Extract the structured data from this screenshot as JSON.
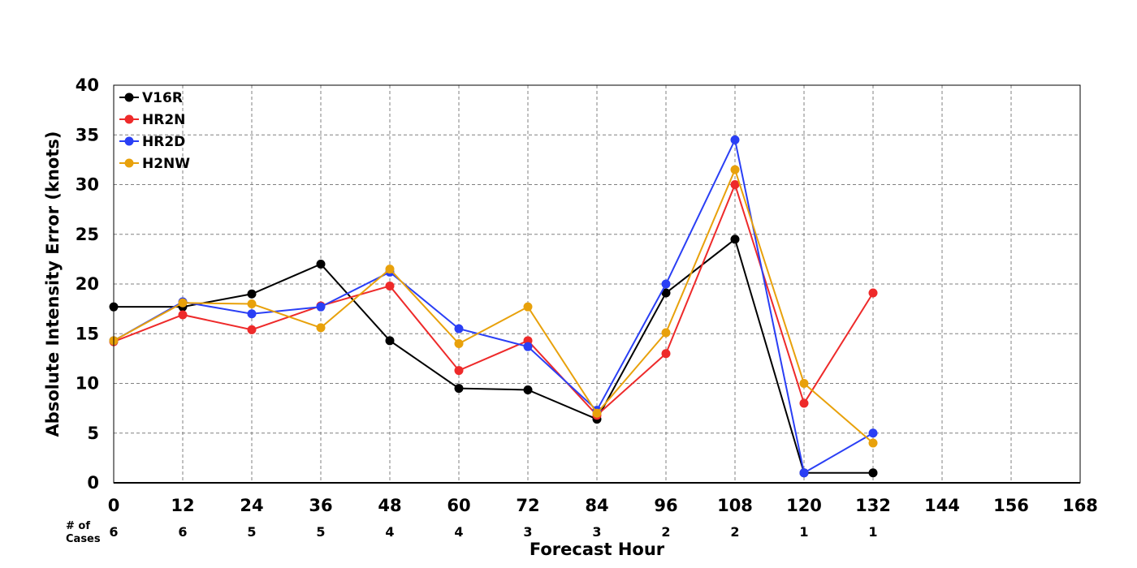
{
  "chart_data": {
    "type": "line",
    "xlabel": "Forecast Hour",
    "ylabel": "Absolute Intensity Error (knots)",
    "xlim": [
      0,
      168
    ],
    "ylim": [
      0,
      40
    ],
    "x_ticks": [
      0,
      12,
      24,
      36,
      48,
      60,
      72,
      84,
      96,
      108,
      120,
      132,
      144,
      156,
      168
    ],
    "y_ticks": [
      0,
      5,
      10,
      15,
      20,
      25,
      30,
      35,
      40
    ],
    "grid": true,
    "legend_position": "top-left",
    "cases_title": [
      "# of",
      "Cases"
    ],
    "cases_x": [
      0,
      12,
      24,
      36,
      48,
      60,
      72,
      84,
      96,
      108,
      120,
      132
    ],
    "cases": [
      "6",
      "6",
      "5",
      "5",
      "4",
      "4",
      "3",
      "3",
      "2",
      "2",
      "1",
      "1"
    ],
    "series": [
      {
        "name": "V16R",
        "color": "#000000",
        "x": [
          0,
          12,
          24,
          36,
          48,
          60,
          72,
          84,
          96,
          108,
          120,
          132
        ],
        "values": [
          17.7,
          17.7,
          19.0,
          22.0,
          14.3,
          9.5,
          9.35,
          6.4,
          19.1,
          24.5,
          1.0,
          1.0
        ]
      },
      {
        "name": "HR2N",
        "color": "#ee2a2a",
        "x": [
          0,
          12,
          24,
          36,
          48,
          60,
          72,
          84,
          96,
          108,
          120,
          132
        ],
        "values": [
          14.2,
          16.9,
          15.4,
          17.8,
          19.8,
          11.3,
          14.3,
          6.8,
          13.0,
          30.0,
          8.0,
          19.1
        ]
      },
      {
        "name": "HR2D",
        "color": "#2a3ff5",
        "x": [
          0,
          12,
          24,
          36,
          48,
          60,
          72,
          84,
          96,
          108,
          120,
          132
        ],
        "values": [
          14.3,
          18.2,
          17.0,
          17.7,
          21.2,
          15.5,
          13.7,
          7.3,
          20.0,
          34.5,
          1.0,
          5.0
        ]
      },
      {
        "name": "H2NW",
        "color": "#e8a10b",
        "x": [
          0,
          12,
          24,
          36,
          48,
          60,
          72,
          84,
          96,
          108,
          120,
          132
        ],
        "values": [
          14.3,
          18.1,
          18.0,
          15.6,
          21.5,
          14.0,
          17.7,
          7.0,
          15.1,
          31.5,
          10.0,
          4.0
        ]
      }
    ]
  }
}
